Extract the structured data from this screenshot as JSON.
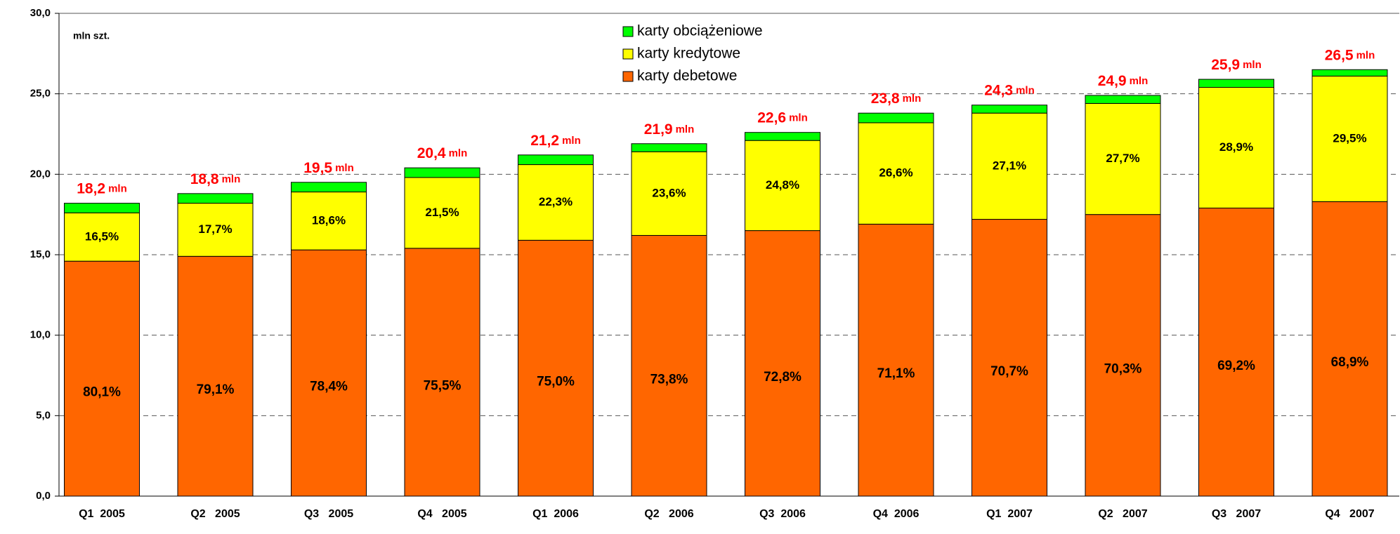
{
  "chart_data": {
    "type": "stacked_bar",
    "unit_label": "mln szt.",
    "categories": [
      "Q1  2005",
      "Q2   2005",
      "Q3   2005",
      "Q4   2005",
      "Q1  2006",
      "Q2   2006",
      "Q3  2006",
      "Q4  2006",
      "Q1  2007",
      "Q2   2007",
      "Q3   2007",
      "Q4   2007"
    ],
    "series": [
      {
        "name": "karty debetowe",
        "color": "#ff6600",
        "values": [
          14.6,
          14.9,
          15.3,
          15.4,
          15.9,
          16.2,
          16.5,
          16.9,
          17.2,
          17.5,
          17.9,
          18.3
        ],
        "shares": [
          80.1,
          79.1,
          78.4,
          75.5,
          75.0,
          73.8,
          72.8,
          71.1,
          70.7,
          70.3,
          69.2,
          68.9
        ],
        "share_labels": [
          "80,1%",
          "79,1%",
          "78,4%",
          "75,5%",
          "75,0%",
          "73,8%",
          "72,8%",
          "71,1%",
          "70,7%",
          "70,3%",
          "69,2%",
          "68,9%"
        ]
      },
      {
        "name": "karty kredytowe",
        "color": "#ffff00",
        "values": [
          3.0,
          3.3,
          3.6,
          4.4,
          4.7,
          5.2,
          5.6,
          6.3,
          6.6,
          6.9,
          7.5,
          7.8
        ],
        "shares": [
          16.5,
          17.7,
          18.6,
          21.5,
          22.3,
          23.6,
          24.8,
          26.6,
          27.1,
          27.7,
          28.9,
          29.5
        ],
        "share_labels": [
          "16,5%",
          "17,7%",
          "18,6%",
          "21,5%",
          "22,3%",
          "23,6%",
          "24,8%",
          "26,6%",
          "27,1%",
          "27,7%",
          "28,9%",
          "29,5%"
        ]
      },
      {
        "name": "karty obciążeniowe",
        "color": "#00ff00",
        "values": [
          0.6,
          0.6,
          0.6,
          0.6,
          0.6,
          0.5,
          0.5,
          0.6,
          0.5,
          0.5,
          0.5,
          0.4
        ]
      }
    ],
    "totals": [
      18.2,
      18.8,
      19.5,
      20.4,
      21.2,
      21.9,
      22.6,
      23.8,
      24.3,
      24.9,
      25.9,
      26.5
    ],
    "total_labels": [
      "18,2",
      "18,8",
      "19,5",
      "20,4",
      "21,2",
      "21,9",
      "22,6",
      "23,8",
      "24,3",
      "24,9",
      "25,9",
      "26,5"
    ],
    "total_unit": "mln",
    "ylim": [
      0,
      30
    ],
    "yticks": [
      {
        "value": 0,
        "label": "0,0"
      },
      {
        "value": 5,
        "label": "5,0"
      },
      {
        "value": 10,
        "label": "10,0"
      },
      {
        "value": 15,
        "label": "15,0"
      },
      {
        "value": 20,
        "label": "20,0"
      },
      {
        "value": 25,
        "label": "25,0"
      },
      {
        "value": 30,
        "label": "30,0"
      }
    ],
    "grid": true,
    "legend": "top"
  }
}
